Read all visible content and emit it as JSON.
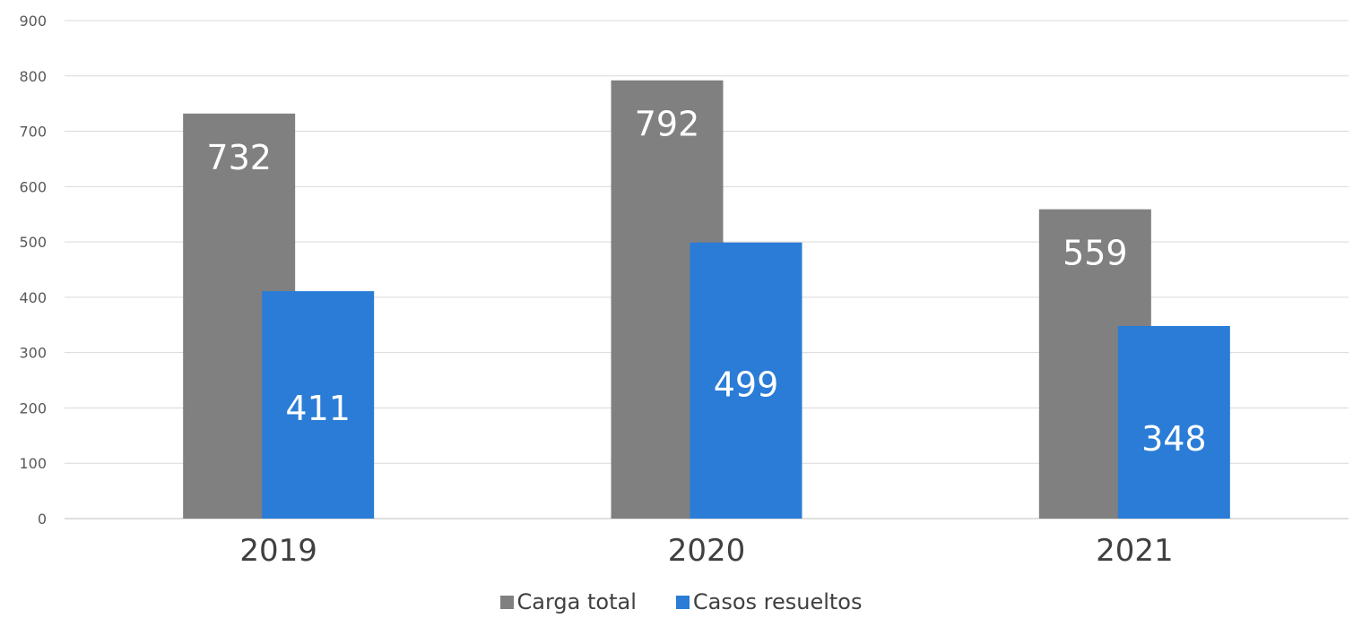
{
  "chart_data": {
    "type": "bar",
    "categories": [
      "2019",
      "2020",
      "2021"
    ],
    "series": [
      {
        "name": "Carga total",
        "color": "#808080",
        "values": [
          732,
          792,
          559
        ]
      },
      {
        "name": "Casos resueltos",
        "color": "#2a7cd6",
        "values": [
          411,
          499,
          348
        ]
      }
    ],
    "ylim": [
      0,
      900
    ],
    "yticks": [
      0,
      100,
      200,
      300,
      400,
      500,
      600,
      700,
      800,
      900
    ],
    "grid": true,
    "legend": "bottom"
  }
}
